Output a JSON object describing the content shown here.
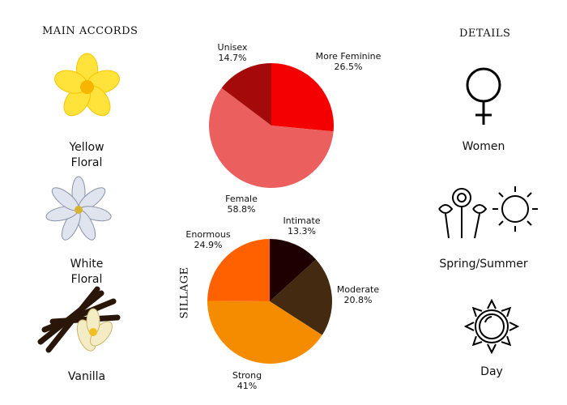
{
  "main_accords": {
    "title": "MAIN ACCORDS",
    "items": [
      {
        "label": "Yellow Floral",
        "icon": "yellow-frangipani-flower"
      },
      {
        "label": "White Floral",
        "icon": "white-tiare-flower"
      },
      {
        "label": "Vanilla",
        "icon": "vanilla-pods-flower"
      }
    ]
  },
  "details": {
    "title": "DETAILS",
    "items": [
      {
        "label": "Women",
        "icon": "female-symbol-icon"
      },
      {
        "label": "Spring/Summer",
        "icon": "flowers-sun-icon"
      },
      {
        "label": "Day",
        "icon": "sun-icon"
      }
    ]
  },
  "chart_data": [
    {
      "type": "pie",
      "title": "",
      "start": "top",
      "direction": "clockwise",
      "slices": [
        {
          "name": "More Feminine",
          "value": 26.5,
          "label": "26.5%",
          "color": "#f50000"
        },
        {
          "name": "Female",
          "value": 58.8,
          "label": "58.8%",
          "color": "#eb5f5f"
        },
        {
          "name": "Unisex",
          "value": 14.7,
          "label": "14.7%",
          "color": "#a50a0a"
        }
      ]
    },
    {
      "type": "pie",
      "title": "SILLAGE",
      "start": "top",
      "direction": "clockwise",
      "slices": [
        {
          "name": "Intimate",
          "value": 13.3,
          "label": "13.3%",
          "color": "#1e0000"
        },
        {
          "name": "Moderate",
          "value": 20.8,
          "label": "20.8%",
          "color": "#432a10"
        },
        {
          "name": "Strong",
          "value": 41,
          "label": "41%",
          "color": "#f58c00"
        },
        {
          "name": "Enormous",
          "value": 24.9,
          "label": "24.9%",
          "color": "#ff6000"
        }
      ]
    }
  ]
}
